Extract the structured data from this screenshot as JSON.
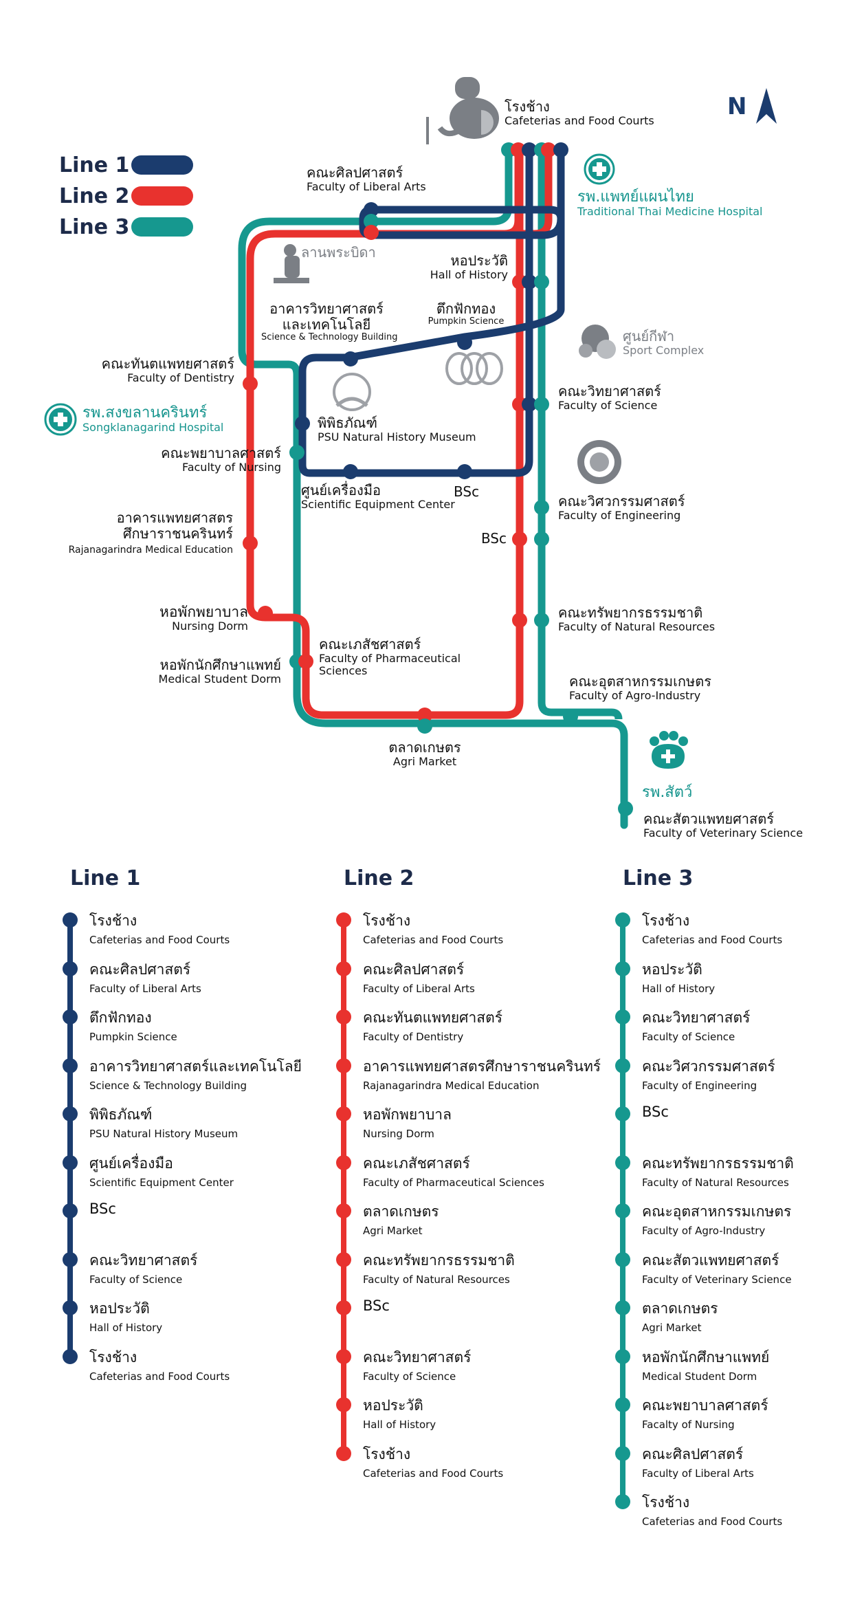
{
  "colors": {
    "line1": "#1b3c6e",
    "line2": "#e8322e",
    "line3": "#16988f",
    "gray": "#7b7f85"
  },
  "legend": [
    {
      "name": "Line 1",
      "color": "#1b3c6e"
    },
    {
      "name": "Line 2",
      "color": "#e8322e"
    },
    {
      "name": "Line 3",
      "color": "#16988f"
    }
  ],
  "north": "N",
  "map_labels": {
    "cafeteria_th": "โรงช้าง",
    "cafeteria_en": "Cafeterias and Food Courts",
    "thai_med_th": "รพ.แพทย์แผนไทย",
    "thai_med_en": "Traditional Thai Medicine Hospital",
    "liberal_th": "คณะศิลปศาสตร์",
    "liberal_en": "Faculty of Liberal Arts",
    "lanprabida_th": "ลานพระบิดา",
    "history_th": "หอประวัติ",
    "history_en": "Hall of History",
    "scitech_th1": "อาคารวิทยาศาสตร์",
    "scitech_th2": "และเทคโนโลยี",
    "scitech_en": "Science & Technology Building",
    "pumpkin_th": "ตึกฟักทอง",
    "pumpkin_en": "Pumpkin Science",
    "sport_th": "ศูนย์กีฬา",
    "sport_en": "Sport Complex",
    "dentistry_th": "คณะทันตแพทยศาสตร์",
    "dentistry_en": "Faculty of Dentistry",
    "sk_hospital_th": "รพ.สงขลานครินทร์",
    "sk_hospital_en": "Songklanagarind Hospital",
    "museum_th": "พิพิธภัณฑ์",
    "museum_en": "PSU Natural History Museum",
    "science_th": "คณะวิทยาศาสตร์",
    "science_en": "Faculty of Science",
    "nursing_th": "คณะพยาบาลศาสตร์",
    "nursing_en": "Faculty of Nursing",
    "sci_equip_th": "ศูนย์เครื่องมือ",
    "sci_equip_en": "Scientific Equipment Center",
    "bsc": "BSc",
    "engineering_th": "คณะวิศวกรรมศาสตร์",
    "engineering_en": "Faculty of Engineering",
    "med_edu_th1": "อาคารแพทยศาสตร",
    "med_edu_th2": "ศึกษาราชนครินทร์",
    "med_edu_en": "Rajanagarindra Medical Education",
    "natres_th": "คณะทรัพยากรธรรมชาติ",
    "natres_en": "Faculty of Natural Resources",
    "nurse_dorm_th": "หอพักพยาบาล",
    "nurse_dorm_en": "Nursing Dorm",
    "pharm_th": "คณะเภสัชศาสตร์",
    "pharm_en1": "Faculty of Pharmaceutical",
    "pharm_en2": "Sciences",
    "med_dorm_th": "หอพักนักศึกษาแพทย์",
    "med_dorm_en": "Medical Student Dorm",
    "agro_th": "คณะอุตสาหกรรมเกษตร",
    "agro_en": "Faculty of Agro-Industry",
    "agri_th": "ตลาดเกษตร",
    "agri_en": "Agri Market",
    "vet_hosp_th": "รพ.สัตว์",
    "vet_th": "คณะสัตวแพทยศาสตร์",
    "vet_en": "Faculty of Veterinary Science"
  },
  "lines": [
    {
      "title": "Line 1",
      "color": "#1b3c6e",
      "stops": [
        {
          "th": "โรงช้าง",
          "en": "Cafeterias and Food Courts"
        },
        {
          "th": "คณะศิลปศาสตร์",
          "en": "Faculty of Liberal Arts"
        },
        {
          "th": "ตึกฟักทอง",
          "en": "Pumpkin Science"
        },
        {
          "th": "อาคารวิทยาศาสตร์และเทคโนโลยี",
          "en": "Science & Technology Building"
        },
        {
          "th": "พิพิธภัณฑ์",
          "en": "PSU Natural History Museum"
        },
        {
          "th": "ศูนย์เครื่องมือ",
          "en": "Scientific Equipment Center"
        },
        {
          "th": "BSc",
          "en": ""
        },
        {
          "th": "คณะวิทยาศาสตร์",
          "en": "Faculty of Science"
        },
        {
          "th": "หอประวัติ",
          "en": "Hall of History"
        },
        {
          "th": "โรงช้าง",
          "en": "Cafeterias and Food Courts"
        }
      ]
    },
    {
      "title": "Line 2",
      "color": "#e8322e",
      "stops": [
        {
          "th": "โรงช้าง",
          "en": "Cafeterias and Food Courts"
        },
        {
          "th": "คณะศิลปศาสตร์",
          "en": "Faculty of Liberal Arts"
        },
        {
          "th": "คณะทันตแพทยศาสตร์",
          "en": "Faculty of Dentistry"
        },
        {
          "th": "อาคารแพทยศาสตรศึกษาราชนครินทร์",
          "en": "Rajanagarindra Medical Education"
        },
        {
          "th": "หอพักพยาบาล",
          "en": "Nursing Dorm"
        },
        {
          "th": "คณะเภสัชศาสตร์",
          "en": "Faculty of Pharmaceutical Sciences"
        },
        {
          "th": "ตลาดเกษตร",
          "en": "Agri Market"
        },
        {
          "th": "คณะทรัพยากรธรรมชาติ",
          "en": "Faculty of Natural Resources"
        },
        {
          "th": "BSc",
          "en": ""
        },
        {
          "th": "คณะวิทยาศาสตร์",
          "en": "Faculty of Science"
        },
        {
          "th": "หอประวัติ",
          "en": "Hall of History"
        },
        {
          "th": "โรงช้าง",
          "en": "Cafeterias and Food Courts"
        }
      ]
    },
    {
      "title": "Line 3",
      "color": "#16988f",
      "stops": [
        {
          "th": "โรงช้าง",
          "en": "Cafeterias and Food Courts"
        },
        {
          "th": "หอประวัติ",
          "en": "Hall of History"
        },
        {
          "th": "คณะวิทยาศาสตร์",
          "en": "Faculty of Science"
        },
        {
          "th": "คณะวิศวกรรมศาสตร์",
          "en": "Faculty of Engineering"
        },
        {
          "th": "BSc",
          "en": ""
        },
        {
          "th": "คณะทรัพยากรธรรมชาติ",
          "en": "Faculty of Natural Resources"
        },
        {
          "th": "คณะอุตสาหกรรมเกษตร",
          "en": "Faculty of Agro-Industry"
        },
        {
          "th": "คณะสัตวแพทยศาสตร์",
          "en": "Faculty of Veterinary Science"
        },
        {
          "th": "ตลาดเกษตร",
          "en": "Agri Market"
        },
        {
          "th": "หอพักนักศึกษาแพทย์",
          "en": "Medical Student Dorm"
        },
        {
          "th": "คณะพยาบาลศาสตร์",
          "en": "Facalty of Nursing"
        },
        {
          "th": "คณะศิลปศาสตร์",
          "en": "Faculty of Liberal Arts"
        },
        {
          "th": "โรงช้าง",
          "en": "Cafeterias and Food Courts"
        }
      ]
    }
  ]
}
